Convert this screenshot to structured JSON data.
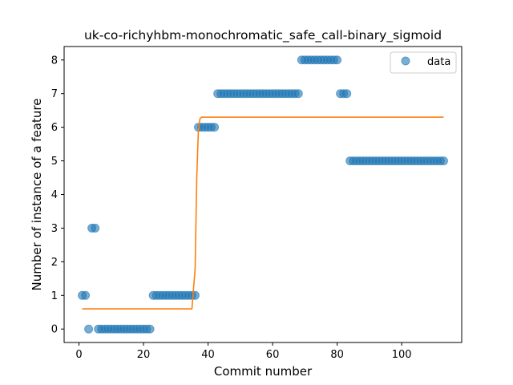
{
  "chart_data": {
    "type": "scatter",
    "title": "uk-co-richyhbm-monochromatic_safe_call-binary_sigmoid",
    "xlabel": "Commit number",
    "ylabel": "Number of instance of a feature",
    "xlim": [
      -4.6,
      118.6
    ],
    "ylim": [
      -0.4,
      8.4
    ],
    "xticks": [
      0,
      20,
      40,
      60,
      80,
      100
    ],
    "yticks": [
      0,
      1,
      2,
      3,
      4,
      5,
      6,
      7,
      8
    ],
    "legend": {
      "position": "top-right",
      "entries": [
        "data"
      ]
    },
    "colors": {
      "data": "#1f77b4",
      "fit": "#ff7f0e"
    },
    "series": [
      {
        "name": "data",
        "kind": "scatter",
        "x": [
          1,
          2,
          3,
          4,
          5,
          6,
          7,
          8,
          9,
          10,
          11,
          12,
          13,
          14,
          15,
          16,
          17,
          18,
          19,
          20,
          21,
          22,
          23,
          24,
          25,
          26,
          27,
          28,
          29,
          30,
          31,
          32,
          33,
          34,
          35,
          36,
          37,
          38,
          39,
          40,
          41,
          42,
          43,
          44,
          45,
          46,
          47,
          48,
          49,
          50,
          51,
          52,
          53,
          54,
          55,
          56,
          57,
          58,
          59,
          60,
          61,
          62,
          63,
          64,
          65,
          66,
          67,
          68,
          69,
          70,
          71,
          72,
          73,
          74,
          75,
          76,
          77,
          78,
          79,
          80,
          81,
          82,
          83,
          84,
          85,
          86,
          87,
          88,
          89,
          90,
          91,
          92,
          93,
          94,
          95,
          96,
          97,
          98,
          99,
          100,
          101,
          102,
          103,
          104,
          105,
          106,
          107,
          108,
          109,
          110,
          111,
          112,
          113
        ],
        "y": [
          1,
          1,
          0,
          3,
          3,
          0,
          0,
          0,
          0,
          0,
          0,
          0,
          0,
          0,
          0,
          0,
          0,
          0,
          0,
          0,
          0,
          0,
          1,
          1,
          1,
          1,
          1,
          1,
          1,
          1,
          1,
          1,
          1,
          1,
          1,
          1,
          6,
          6,
          6,
          6,
          6,
          6,
          7,
          7,
          7,
          7,
          7,
          7,
          7,
          7,
          7,
          7,
          7,
          7,
          7,
          7,
          7,
          7,
          7,
          7,
          7,
          7,
          7,
          7,
          7,
          7,
          7,
          7,
          8,
          8,
          8,
          8,
          8,
          8,
          8,
          8,
          8,
          8,
          8,
          8,
          7,
          7,
          7,
          5,
          5,
          5,
          5,
          5,
          5,
          5,
          5,
          5,
          5,
          5,
          5,
          5,
          5,
          5,
          5,
          5,
          5,
          5,
          5,
          5,
          5,
          5,
          5,
          5,
          5,
          5,
          5,
          5,
          5
        ]
      },
      {
        "kind": "line",
        "x": [
          1,
          35,
          36,
          36.5,
          37,
          37.5,
          38,
          113
        ],
        "y": [
          0.6,
          0.6,
          1.8,
          4.5,
          5.9,
          6.25,
          6.3,
          6.3
        ]
      }
    ]
  }
}
